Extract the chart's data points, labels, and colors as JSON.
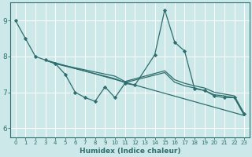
{
  "xlabel": "Humidex (Indice chaleur)",
  "xlim": [
    -0.5,
    23.5
  ],
  "ylim": [
    5.75,
    9.5
  ],
  "yticks": [
    6,
    7,
    8,
    9
  ],
  "xticks": [
    0,
    1,
    2,
    3,
    4,
    5,
    6,
    7,
    8,
    9,
    10,
    11,
    12,
    13,
    14,
    15,
    16,
    17,
    18,
    19,
    20,
    21,
    22,
    23
  ],
  "bg_color": "#cce8e8",
  "line_color": "#2e6e6e",
  "grid_color": "#ffffff",
  "series": [
    {
      "x": [
        0,
        1,
        2,
        3,
        4,
        5,
        6,
        7,
        8,
        9,
        10,
        11,
        12,
        14,
        15,
        16,
        17,
        18,
        19,
        20,
        21,
        22,
        23
      ],
      "y": [
        9.0,
        8.5,
        8.0,
        7.9,
        7.8,
        7.5,
        7.0,
        6.85,
        6.75,
        7.15,
        6.85,
        7.25,
        7.2,
        8.05,
        9.3,
        8.4,
        8.15,
        7.1,
        7.05,
        6.9,
        6.85,
        6.85,
        6.4
      ],
      "has_markers": true
    },
    {
      "x": [
        3,
        4,
        10,
        11,
        15,
        16,
        17,
        18,
        19,
        20,
        21,
        22,
        23
      ],
      "y": [
        7.9,
        7.8,
        7.45,
        7.3,
        7.6,
        7.35,
        7.25,
        7.18,
        7.12,
        7.0,
        6.95,
        6.9,
        6.4
      ],
      "has_markers": false
    },
    {
      "x": [
        3,
        4,
        10,
        11,
        15,
        16,
        17,
        18,
        19,
        20,
        21,
        22,
        23
      ],
      "y": [
        7.9,
        7.8,
        7.38,
        7.27,
        7.55,
        7.28,
        7.18,
        7.12,
        7.05,
        6.93,
        6.9,
        6.85,
        6.35
      ],
      "has_markers": false
    },
    {
      "x": [
        3,
        23
      ],
      "y": [
        7.9,
        6.35
      ],
      "has_markers": false
    }
  ]
}
